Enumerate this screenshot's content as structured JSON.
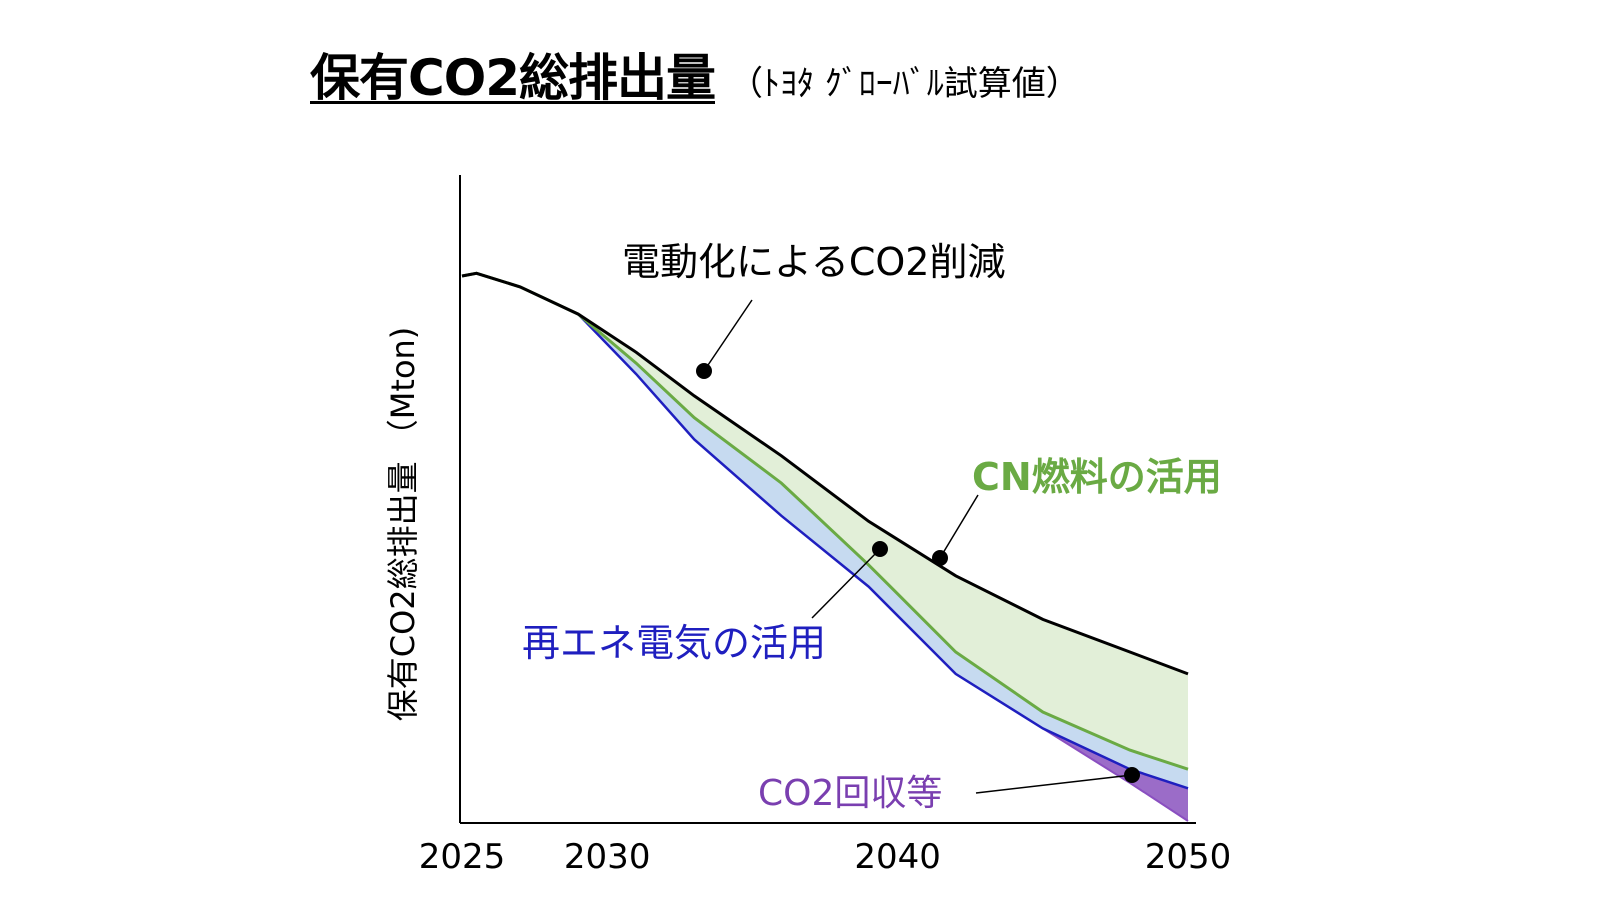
{
  "title": {
    "main": "保有CO2総排出量",
    "sub": "（ﾄﾖﾀ ｸﾞﾛｰﾊﾞﾙ試算値）"
  },
  "chart_data": {
    "type": "area",
    "ylabel": "保有CO2総排出量 （Mton)",
    "x_ticks": [
      2025,
      2030,
      2040,
      2050
    ],
    "xlim": [
      2025,
      2050
    ],
    "colors": {
      "baseline_line": "#000000",
      "cn_fuel": "#6aaa44",
      "cn_fuel_fill": "#e2efd8",
      "renewable": "#1f1fbf",
      "renewable_fill": "#c6daf0",
      "capture": "#8a4fc0",
      "capture_fill": "#9b6cc8"
    },
    "series": [
      {
        "name": "electrification",
        "x": [
          2025,
          2025.5,
          2027,
          2029,
          2031,
          2033,
          2036,
          2039,
          2042,
          2045,
          2048,
          2050
        ],
        "values": [
          100,
          100.5,
          98,
          93,
          86,
          78,
          67,
          55,
          45,
          37,
          31,
          27
        ]
      },
      {
        "name": "cn_fuel",
        "x": [
          2025,
          2025.5,
          2027,
          2029,
          2031,
          2033,
          2036,
          2039,
          2042,
          2045,
          2048,
          2050
        ],
        "values": [
          100,
          100.5,
          98,
          93,
          84,
          74,
          62,
          47,
          31,
          20,
          13,
          9.5
        ]
      },
      {
        "name": "renewable",
        "x": [
          2025,
          2025.5,
          2027,
          2029,
          2031,
          2033,
          2036,
          2039,
          2042,
          2045,
          2048,
          2050
        ],
        "values": [
          100,
          100.5,
          98,
          93,
          82,
          70,
          56,
          43,
          27,
          17,
          9.5,
          6
        ]
      },
      {
        "name": "capture",
        "x": [
          2045,
          2048,
          2050
        ],
        "values": [
          17,
          7,
          0
        ]
      }
    ],
    "annotations": [
      {
        "text": "電動化によるCO2削減",
        "color": "#000000"
      },
      {
        "text": "CN燃料の活用",
        "color": "#6aaa44"
      },
      {
        "text": "再エネ電気の活用",
        "color": "#1f1fbf"
      },
      {
        "text": "CO2回収等",
        "color": "#7a3fb0"
      }
    ]
  }
}
